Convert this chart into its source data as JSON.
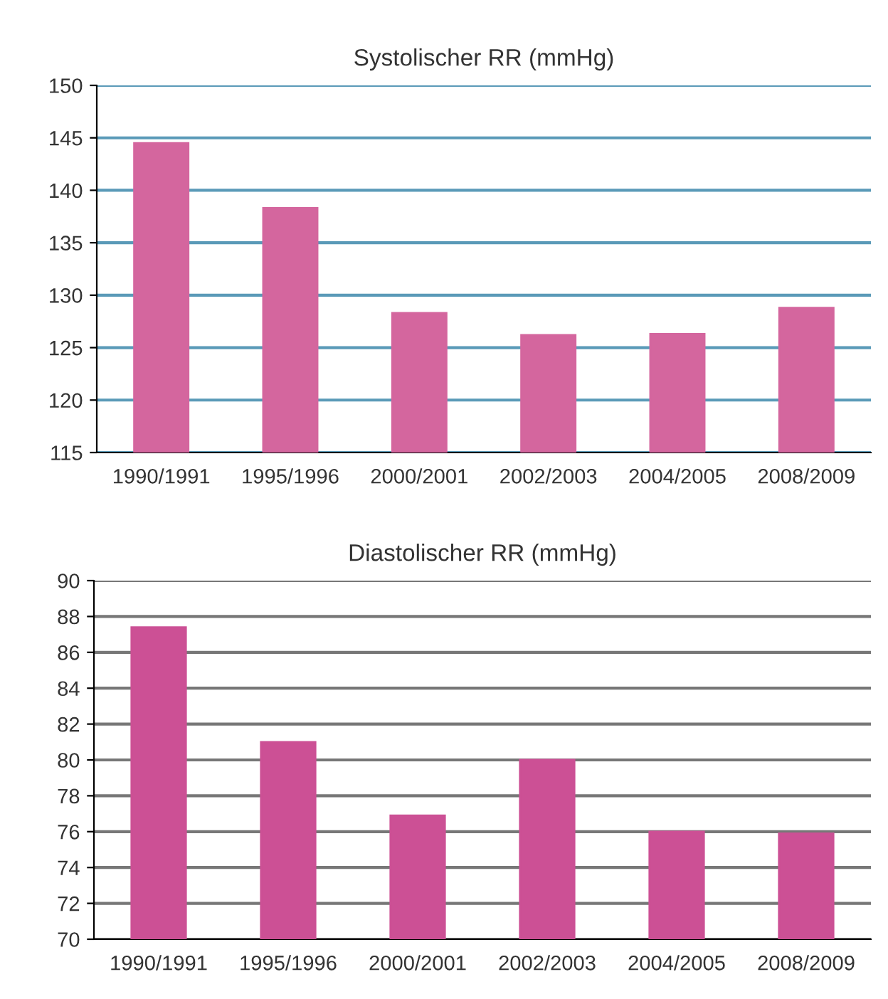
{
  "chart_data": [
    {
      "type": "bar",
      "title": "Systolischer RR (mmHg)",
      "categories": [
        "1990/1991",
        "1995/1996",
        "2000/2001",
        "2002/2003",
        "2004/2005",
        "2008/2009"
      ],
      "values": [
        144.5,
        138.3,
        128.3,
        126.2,
        126.3,
        128.8
      ],
      "color": "#d4669e",
      "ylim": [
        115,
        150
      ],
      "yticks": [
        115,
        120,
        125,
        130,
        135,
        140,
        145,
        150
      ],
      "grid": "y"
    },
    {
      "type": "bar",
      "title": "Diastolischer RR (mmHg)",
      "categories": [
        "1990/1991",
        "1995/1996",
        "2000/2001",
        "2002/2003",
        "2004/2005",
        "2008/2009"
      ],
      "values": [
        87.4,
        81.0,
        76.9,
        80.0,
        76.0,
        75.9
      ],
      "color": "#cc5095",
      "ylim": [
        70,
        90
      ],
      "yticks": [
        70,
        72,
        74,
        76,
        78,
        80,
        82,
        84,
        86,
        88,
        90
      ],
      "grid": "y"
    }
  ]
}
